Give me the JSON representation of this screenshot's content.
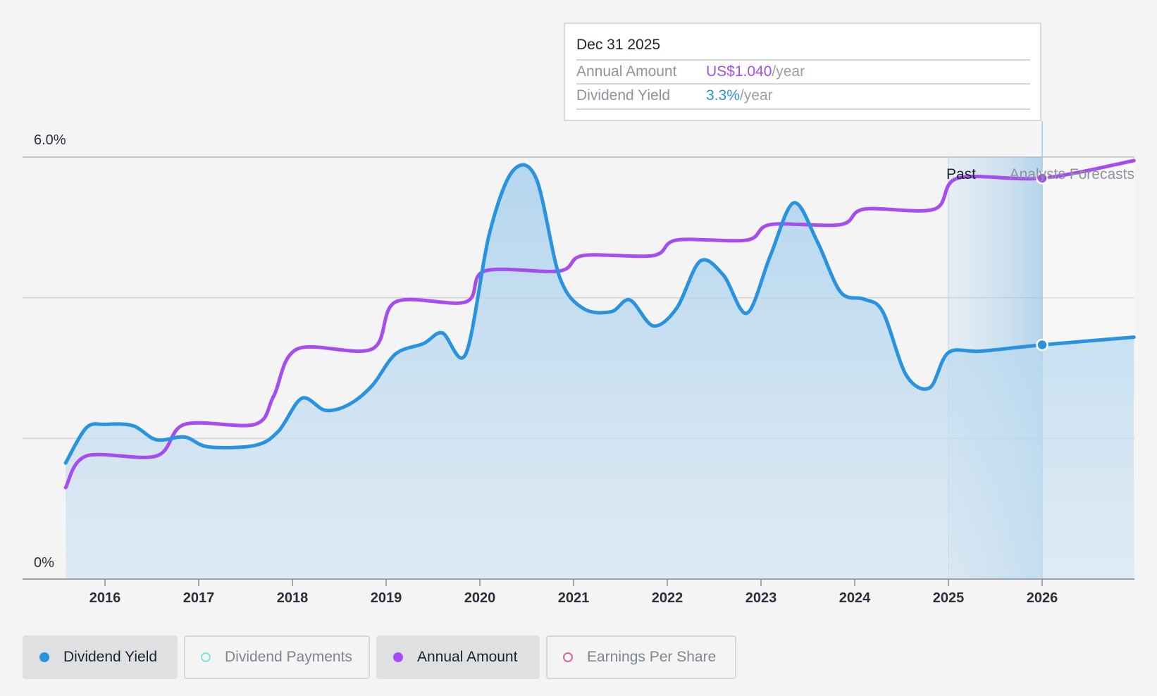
{
  "colors": {
    "yield": "#2a93e0",
    "annual": "#a64df0",
    "payments": "#7fe3e0",
    "eps": "#d06a9a"
  },
  "tooltip": {
    "date": "Dec 31 2025",
    "annual_label": "Annual Amount",
    "annual_value": "US$1.040",
    "annual_unit": "/year",
    "yield_label": "Dividend Yield",
    "yield_value": "3.3%",
    "yield_unit": "/year"
  },
  "regions": {
    "past_label": "Past",
    "forecast_label": "Analysts Forecasts"
  },
  "legend": [
    {
      "label": "Dividend Yield",
      "active": true,
      "icon": "filled-dot-icon",
      "color": "#2a93e0"
    },
    {
      "label": "Dividend Payments",
      "active": false,
      "icon": "hollow-dot-icon",
      "color": "#7fe3e0"
    },
    {
      "label": "Annual Amount",
      "active": true,
      "icon": "filled-dot-icon",
      "color": "#a64df0"
    },
    {
      "label": "Earnings Per Share",
      "active": false,
      "icon": "hollow-dot-icon",
      "color": "#d06a9a"
    }
  ],
  "chart_data": {
    "type": "line",
    "title": "",
    "xlabel": "",
    "ylabel": "",
    "x_ticks": [
      "2016",
      "2017",
      "2018",
      "2019",
      "2020",
      "2021",
      "2022",
      "2023",
      "2024",
      "2025",
      "2026"
    ],
    "y_ticks": [
      "0%",
      "6.0%"
    ],
    "y_range": [
      0,
      6.0
    ],
    "x_range": [
      2015.58,
      2026.98
    ],
    "grid": true,
    "highlight_x": 2026.0,
    "forecast_start_x": 2025.0,
    "series": [
      {
        "name": "Dividend Yield",
        "unit": "%",
        "fill": true,
        "points": [
          [
            2015.58,
            1.65
          ],
          [
            2015.8,
            2.15
          ],
          [
            2016.0,
            2.2
          ],
          [
            2016.3,
            2.18
          ],
          [
            2016.55,
            1.98
          ],
          [
            2016.85,
            2.02
          ],
          [
            2017.1,
            1.88
          ],
          [
            2017.6,
            1.9
          ],
          [
            2017.85,
            2.1
          ],
          [
            2018.1,
            2.57
          ],
          [
            2018.35,
            2.4
          ],
          [
            2018.6,
            2.48
          ],
          [
            2018.85,
            2.75
          ],
          [
            2019.1,
            3.2
          ],
          [
            2019.4,
            3.35
          ],
          [
            2019.6,
            3.5
          ],
          [
            2019.85,
            3.2
          ],
          [
            2020.1,
            4.9
          ],
          [
            2020.35,
            5.8
          ],
          [
            2020.6,
            5.7
          ],
          [
            2020.85,
            4.3
          ],
          [
            2021.1,
            3.85
          ],
          [
            2021.4,
            3.8
          ],
          [
            2021.6,
            3.97
          ],
          [
            2021.85,
            3.6
          ],
          [
            2022.1,
            3.85
          ],
          [
            2022.35,
            4.52
          ],
          [
            2022.6,
            4.32
          ],
          [
            2022.85,
            3.78
          ],
          [
            2023.1,
            4.6
          ],
          [
            2023.35,
            5.35
          ],
          [
            2023.6,
            4.8
          ],
          [
            2023.85,
            4.08
          ],
          [
            2024.1,
            3.98
          ],
          [
            2024.3,
            3.8
          ],
          [
            2024.55,
            2.9
          ],
          [
            2024.8,
            2.72
          ],
          [
            2025.0,
            3.22
          ],
          [
            2025.35,
            3.24
          ],
          [
            2026.0,
            3.33
          ],
          [
            2026.98,
            3.44
          ]
        ]
      },
      {
        "name": "Annual Amount",
        "unit": "US$/year",
        "fill": false,
        "points": [
          [
            2015.58,
            1.3
          ],
          [
            2015.8,
            1.75
          ],
          [
            2016.55,
            1.75
          ],
          [
            2016.85,
            2.2
          ],
          [
            2017.6,
            2.2
          ],
          [
            2017.8,
            2.6
          ],
          [
            2018.05,
            3.27
          ],
          [
            2018.85,
            3.27
          ],
          [
            2019.1,
            3.94
          ],
          [
            2019.85,
            3.94
          ],
          [
            2020.05,
            4.38
          ],
          [
            2020.85,
            4.38
          ],
          [
            2021.1,
            4.6
          ],
          [
            2021.85,
            4.6
          ],
          [
            2022.1,
            4.82
          ],
          [
            2022.85,
            4.82
          ],
          [
            2023.1,
            5.04
          ],
          [
            2023.85,
            5.04
          ],
          [
            2024.1,
            5.26
          ],
          [
            2024.85,
            5.26
          ],
          [
            2025.1,
            5.7
          ],
          [
            2026.0,
            5.7
          ],
          [
            2026.98,
            5.95
          ]
        ]
      }
    ],
    "tooltip_at": "Dec 31 2025"
  }
}
